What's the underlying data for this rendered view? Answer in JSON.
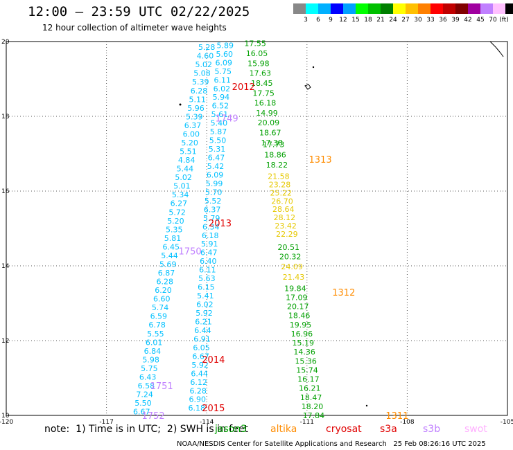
{
  "header": {
    "title": "12:00 — 23:59 UTC 02/22/2025",
    "subtitle": "12 hour collection of altimeter wave heights"
  },
  "scale": {
    "unit": "(ft)",
    "colors": [
      "#888888",
      "#00ffff",
      "#00b0ff",
      "#0000ff",
      "#00a0ff",
      "#00ff00",
      "#00c000",
      "#008000",
      "#ffff00",
      "#ffc000",
      "#ff8000",
      "#ff0000",
      "#c00000",
      "#800000",
      "#a000a0",
      "#c080ff",
      "#ffc0ff",
      "#000000"
    ],
    "labels": [
      "3",
      "6",
      "9",
      "12",
      "15",
      "18",
      "21",
      "24",
      "27",
      "30",
      "33",
      "36",
      "39",
      "42",
      "45",
      "70"
    ]
  },
  "map": {
    "x_ticks": [
      "-120",
      "-117",
      "-114",
      "-111",
      "-108",
      "-105"
    ],
    "y_ticks": [
      "10",
      "12",
      "14",
      "16",
      "18",
      "20"
    ],
    "annotations": [
      {
        "text": "2012",
        "color": "#e00000",
        "lon": -112.9,
        "lat": 18.8
      },
      {
        "text": "2013",
        "color": "#e00000",
        "lon": -113.6,
        "lat": 15.15
      },
      {
        "text": "2014",
        "color": "#e00000",
        "lon": -113.8,
        "lat": 11.5
      },
      {
        "text": "2015",
        "color": "#e00000",
        "lon": -113.8,
        "lat": 10.2
      },
      {
        "text": "1313",
        "color": "#ff8c00",
        "lon": -110.6,
        "lat": 16.85
      },
      {
        "text": "1312",
        "color": "#ff8c00",
        "lon": -109.9,
        "lat": 13.3
      },
      {
        "text": "1311",
        "color": "#ff8c00",
        "lon": -108.3,
        "lat": 10.0
      },
      {
        "text": "1749",
        "color": "#c080ff",
        "lon": -113.4,
        "lat": 17.95
      },
      {
        "text": "1750",
        "color": "#c080ff",
        "lon": -114.5,
        "lat": 14.4
      },
      {
        "text": "1751",
        "color": "#c080ff",
        "lon": -115.35,
        "lat": 10.8
      },
      {
        "text": "1752",
        "color": "#c080ff",
        "lon": -115.6,
        "lat": 10.0
      }
    ],
    "tracks": [
      {
        "color": "#00c0ff",
        "lat0": 19.85,
        "lat1": 10.1,
        "lon0": -114.0,
        "lon1": -115.95,
        "values": [
          "5.28",
          "4.60",
          "5.02",
          "5.08",
          "5.39",
          "6.28",
          "5.11",
          "5.96",
          "5.39",
          "6.37",
          "6.00",
          "5.20",
          "5.51",
          "4.84",
          "5.44",
          "5.02",
          "5.01",
          "5.34",
          "6.27",
          "5.72",
          "5.20",
          "5.35",
          "5.81",
          "6.45",
          "5.44",
          "5.69",
          "6.87",
          "6.28",
          "6.20",
          "6.60",
          "5.74",
          "6.59",
          "6.78",
          "5.55",
          "6.01",
          "6.84",
          "5.98",
          "5.75",
          "6.43",
          "6.58",
          "7.24",
          "5.50",
          "6.67"
        ]
      },
      {
        "color": "#00c0ff",
        "lat0": 19.9,
        "lat1": 10.2,
        "lon0": -113.45,
        "lon1": -114.3,
        "values": [
          "5.89",
          "5.60",
          "6.09",
          "5.75",
          "6.11",
          "6.02",
          "5.94",
          "6.52",
          "5.61",
          "5.40",
          "5.87",
          "5.50",
          "5.31",
          "6.47",
          "5.42",
          "6.09",
          "5.99",
          "5.70",
          "5.52",
          "6.37",
          "5.79",
          "6.34",
          "6.18",
          "5.91",
          "6.47",
          "6.40",
          "6.11",
          "5.63",
          "6.15",
          "5.41",
          "6.02",
          "5.92",
          "6.21",
          "6.44",
          "6.91",
          "6.05",
          "6.67",
          "5.92",
          "6.44",
          "6.12",
          "6.28",
          "6.90",
          "6.18"
        ]
      },
      {
        "color": "#00a000",
        "lat0": 19.95,
        "lat1": 17.3,
        "lon0": -112.55,
        "lon1": -112.05,
        "values": [
          "17.55",
          "16.05",
          "15.98",
          "17.63",
          "18.45",
          "17.75",
          "16.18",
          "14.99",
          "20.09",
          "18.67",
          "17.38"
        ]
      },
      {
        "color": "#00a000",
        "lat0": 17.25,
        "lat1": 16.7,
        "lon0": -112.0,
        "lon1": -111.9,
        "values": [
          "17.73",
          "18.86",
          "18.22"
        ]
      },
      {
        "color": "#e6c800",
        "lat0": 16.4,
        "lat1": 14.85,
        "lon0": -111.85,
        "lon1": -111.6,
        "values": [
          "21.58",
          "23.28",
          "25.22",
          "26.70",
          "28.64",
          "28.12",
          "23.42",
          "22.29"
        ]
      },
      {
        "color": "#00a000",
        "lat0": 14.5,
        "lat1": 14.25,
        "lon0": -111.55,
        "lon1": -111.5,
        "values": [
          "20.51",
          "20.32"
        ]
      },
      {
        "color": "#e6c800",
        "lat0": 13.98,
        "lat1": 13.7,
        "lon0": -111.45,
        "lon1": -111.4,
        "values": [
          "24.09",
          "21.43"
        ]
      },
      {
        "color": "#00a000",
        "lat0": 13.4,
        "lat1": 10.0,
        "lon0": -111.35,
        "lon1": -110.8,
        "values": [
          "19.84",
          "17.09",
          "20.17",
          "18.46",
          "19.95",
          "16.96",
          "15.19",
          "14.36",
          "15.36",
          "15.74",
          "16.17",
          "16.21",
          "18.47",
          "18.20",
          "17.84"
        ]
      }
    ]
  },
  "legend": {
    "note": "note:  1) Time is in UTC;  2) SWH is in feet",
    "missions": [
      {
        "label": "jason3",
        "color": "#00a000"
      },
      {
        "label": "altika",
        "color": "#ff8c00"
      },
      {
        "label": "cryosat",
        "color": "#e00000"
      },
      {
        "label": "s3a",
        "color": "#e00000"
      },
      {
        "label": "s3b",
        "color": "#c080ff"
      },
      {
        "label": "swot",
        "color": "#ffb0ff"
      }
    ]
  },
  "footer": {
    "org": "NOAA/NESDIS Center for Satellite Applications and Research",
    "timestamp": "25 Feb 08:26:16 UTC 2025"
  }
}
